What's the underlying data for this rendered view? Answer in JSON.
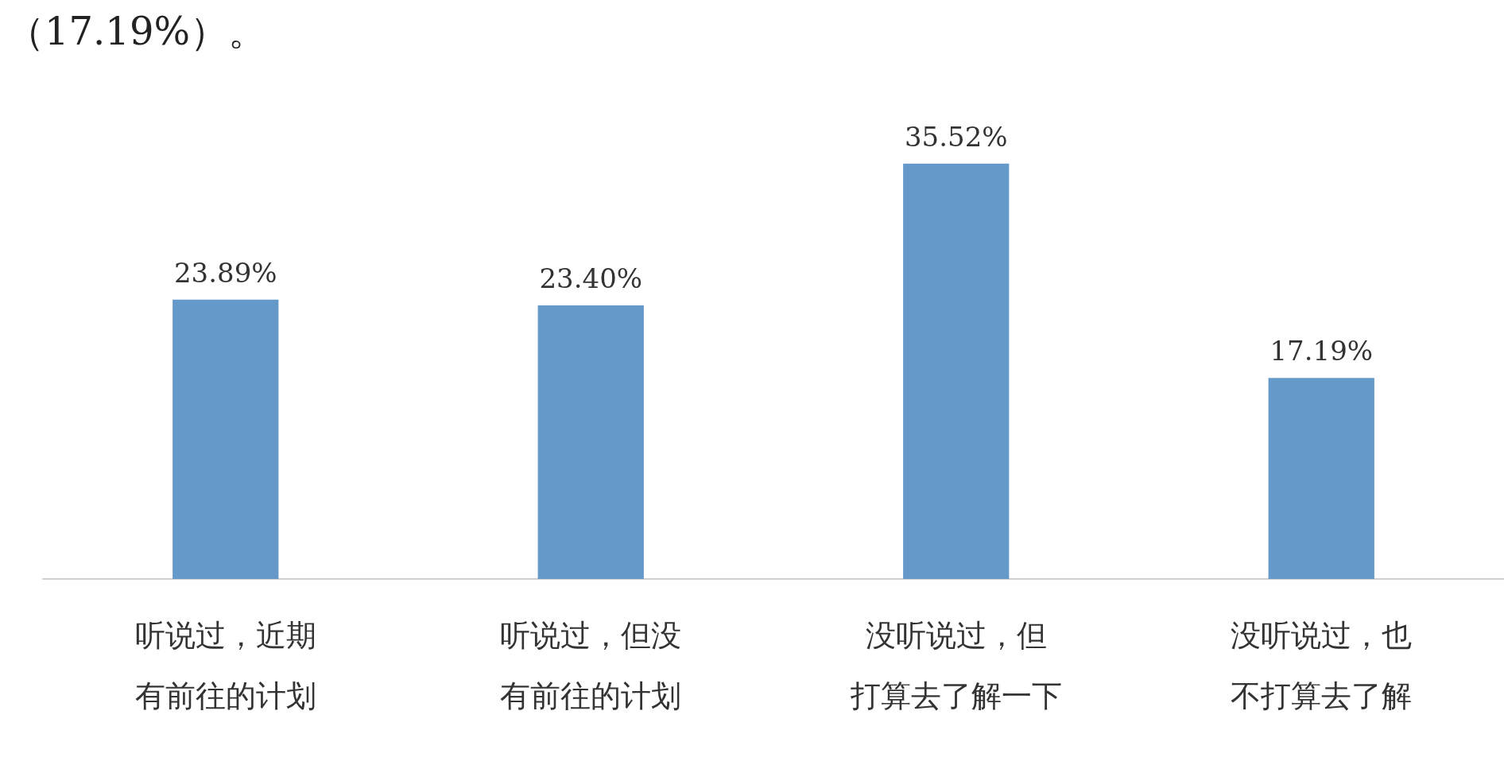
{
  "chart_data": {
    "type": "bar",
    "categories": [
      "听说过，近期有前往的计划",
      "听说过，但没有前往的计划",
      "没听说过，但打算去了解一下",
      "没听说过，也不打算去了解"
    ],
    "values": [
      23.89,
      23.4,
      35.52,
      17.19
    ],
    "value_labels": [
      "23.89%",
      "23.40%",
      "35.52%",
      "17.19%"
    ],
    "color": "#6599c9",
    "tick_labels": "x",
    "grid": false,
    "legend": false,
    "annotations": [
      "（17.19%）。"
    ]
  }
}
